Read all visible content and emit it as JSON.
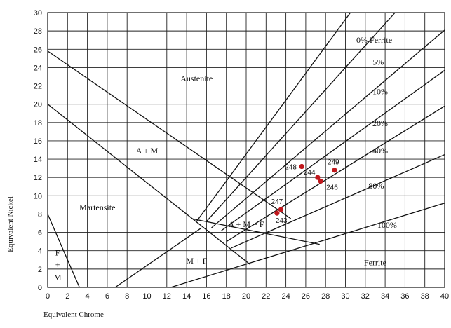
{
  "chart_data": {
    "type": "scatter",
    "title": "",
    "xlabel": "Equivalent Chrome",
    "ylabel": "Equivalent Nickel",
    "xlim": [
      0,
      40
    ],
    "ylim": [
      0,
      30
    ],
    "xticks": [
      0,
      2,
      4,
      6,
      8,
      10,
      12,
      14,
      16,
      18,
      20,
      22,
      24,
      26,
      28,
      30,
      32,
      34,
      36,
      38,
      40
    ],
    "yticks": [
      0,
      2,
      4,
      6,
      8,
      10,
      12,
      14,
      16,
      18,
      20,
      22,
      24,
      26,
      28,
      30
    ],
    "grid": true,
    "point_color": "#c0171c",
    "region_labels": [
      {
        "text": "Austenite",
        "x": 15,
        "y": 22.5
      },
      {
        "text": "A + M",
        "x": 10,
        "y": 14.6
      },
      {
        "text": "Martensite",
        "x": 5,
        "y": 8.4
      },
      {
        "text": "A + M + F",
        "x": 20,
        "y": 6.6
      },
      {
        "text": "M + F",
        "x": 15,
        "y": 2.6
      },
      {
        "text": "Ferrite",
        "x": 33,
        "y": 2.4
      },
      {
        "text": "F",
        "x": 1,
        "y": 3.5
      },
      {
        "text": "+",
        "x": 1,
        "y": 2.2
      },
      {
        "text": "M",
        "x": 1,
        "y": 0.8
      }
    ],
    "ferrite_labels": [
      {
        "text": "0% Ferrite",
        "x": 32.9,
        "y": 26.7
      },
      {
        "text": "5%",
        "x": 33.3,
        "y": 24.3
      },
      {
        "text": "10%",
        "x": 33.5,
        "y": 21.1
      },
      {
        "text": "20%",
        "x": 33.5,
        "y": 17.6
      },
      {
        "text": "40%",
        "x": 33.5,
        "y": 14.6
      },
      {
        "text": "80%",
        "x": 33.1,
        "y": 10.8
      },
      {
        "text": "100%",
        "x": 34.2,
        "y": 6.5
      }
    ],
    "boundary_lines": [
      {
        "name": "A/A+M upper",
        "points": [
          [
            0,
            25.8
          ],
          [
            24.5,
            7.5
          ]
        ]
      },
      {
        "name": "A+M/M lower",
        "points": [
          [
            0,
            20
          ],
          [
            20.4,
            2.5
          ]
        ]
      },
      {
        "name": "M+F left",
        "points": [
          [
            6.8,
            0
          ],
          [
            15.5,
            6.5
          ]
        ]
      },
      {
        "name": "M/F+M",
        "points": [
          [
            0,
            8
          ],
          [
            3.2,
            0
          ]
        ]
      },
      {
        "name": "A+M+F lower",
        "points": [
          [
            14.5,
            7.5
          ],
          [
            27.4,
            4.7
          ]
        ]
      },
      {
        "name": "0% Ferrite",
        "points": [
          [
            15,
            7.2
          ],
          [
            30.5,
            30
          ]
        ]
      },
      {
        "name": "5%",
        "points": [
          [
            16,
            7.2
          ],
          [
            35,
            30
          ]
        ]
      },
      {
        "name": "10%",
        "points": [
          [
            16.5,
            6.5
          ],
          [
            40,
            28.1
          ]
        ]
      },
      {
        "name": "20%",
        "points": [
          [
            17.5,
            6.2
          ],
          [
            40,
            23.7
          ]
        ]
      },
      {
        "name": "40%",
        "points": [
          [
            18,
            5
          ],
          [
            40,
            19.8
          ]
        ]
      },
      {
        "name": "80%",
        "points": [
          [
            18.5,
            4.3
          ],
          [
            40,
            14.5
          ]
        ]
      },
      {
        "name": "100%",
        "points": [
          [
            12.4,
            0
          ],
          [
            40,
            9.2
          ]
        ]
      }
    ],
    "points": [
      {
        "label": "248",
        "x": 25.6,
        "y": 13.2
      },
      {
        "label": "244",
        "x": 27.2,
        "y": 12.0
      },
      {
        "label": "246",
        "x": 27.5,
        "y": 11.6
      },
      {
        "label": "249",
        "x": 28.9,
        "y": 12.8
      },
      {
        "label": "247",
        "x": 23.5,
        "y": 8.5
      },
      {
        "label": "243",
        "x": 23.1,
        "y": 8.1
      }
    ]
  }
}
